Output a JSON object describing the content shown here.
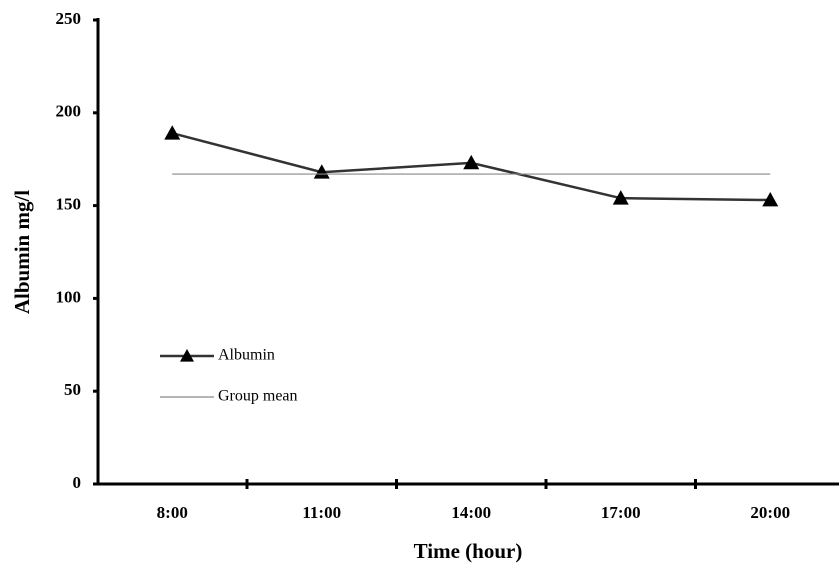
{
  "chart_data": {
    "type": "line",
    "x_label": "Time (hour)",
    "y_label": "Albumin mg/l",
    "categories": [
      "8:00",
      "11:00",
      "14:00",
      "17:00",
      "20:00"
    ],
    "series": [
      {
        "name": "Albumin",
        "color": "#333333",
        "marker": "triangle",
        "values": [
          189,
          168,
          173,
          154,
          153
        ]
      },
      {
        "name": "Group mean",
        "color": "#888888",
        "marker": "none",
        "values": [
          167,
          167,
          167,
          167,
          167
        ]
      }
    ],
    "ylim": [
      0,
      250
    ],
    "yticks": [
      0,
      50,
      100,
      150,
      200,
      250
    ],
    "grid": false,
    "legend": "left"
  }
}
